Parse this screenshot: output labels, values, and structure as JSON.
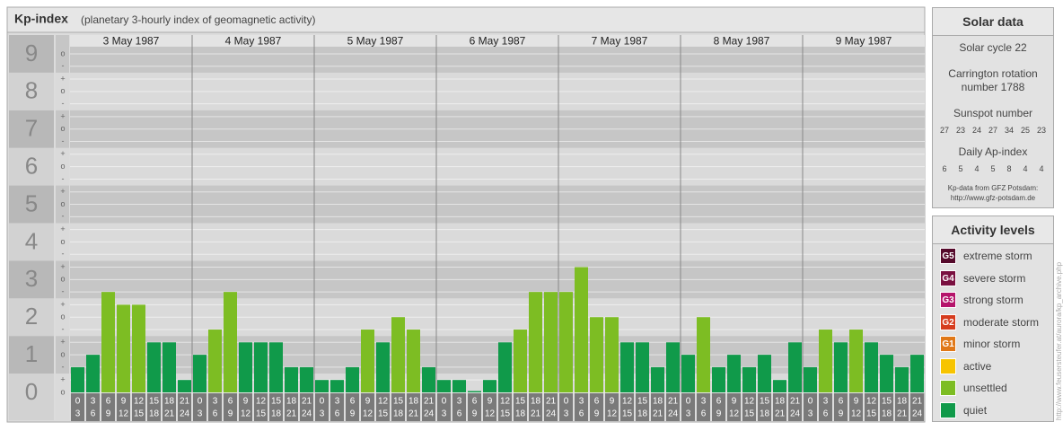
{
  "chart_data": {
    "type": "bar",
    "title": "Kp-index",
    "subtitle": "(planetary 3-hourly index of geomagnetic activity)",
    "hours": [
      "0",
      "3",
      "6",
      "9",
      "12",
      "15",
      "18",
      "21",
      "24"
    ],
    "ylim": [
      0,
      9.5
    ],
    "yticks": [
      0,
      1,
      2,
      3,
      4,
      5,
      6,
      7,
      8,
      9
    ],
    "yticks_minor": [
      {
        "value": 0,
        "label": "o"
      },
      {
        "value": 0.33,
        "label": "+"
      },
      {
        "value": 0.67,
        "label": "-"
      },
      {
        "value": 1,
        "label": "o"
      },
      {
        "value": 1.33,
        "label": "+"
      },
      {
        "value": 1.67,
        "label": "-"
      },
      {
        "value": 2,
        "label": "o"
      },
      {
        "value": 2.33,
        "label": "+"
      },
      {
        "value": 2.67,
        "label": "-"
      },
      {
        "value": 3,
        "label": "o"
      },
      {
        "value": 3.33,
        "label": "+"
      },
      {
        "value": 3.67,
        "label": "-"
      },
      {
        "value": 4,
        "label": "o"
      },
      {
        "value": 4.33,
        "label": "+"
      },
      {
        "value": 4.67,
        "label": "-"
      },
      {
        "value": 5,
        "label": "o"
      },
      {
        "value": 5.33,
        "label": "+"
      },
      {
        "value": 5.67,
        "label": "-"
      },
      {
        "value": 6,
        "label": "o"
      },
      {
        "value": 6.33,
        "label": "+"
      },
      {
        "value": 6.67,
        "label": "-"
      },
      {
        "value": 7,
        "label": "o"
      },
      {
        "value": 7.33,
        "label": "+"
      },
      {
        "value": 7.67,
        "label": "-"
      },
      {
        "value": 8,
        "label": "o"
      },
      {
        "value": 8.33,
        "label": "+"
      },
      {
        "value": 8.67,
        "label": "-"
      },
      {
        "value": 9,
        "label": "o"
      }
    ],
    "grid": true,
    "days": [
      {
        "label": "3 May 1987",
        "values": [
          0.67,
          1,
          2.67,
          2.33,
          2.33,
          1.33,
          1.33,
          0.33
        ],
        "colors": [
          "#109a4a",
          "#109a4a",
          "#7dbd23",
          "#7dbd23",
          "#7dbd23",
          "#109a4a",
          "#109a4a",
          "#109a4a"
        ]
      },
      {
        "label": "4 May 1987",
        "values": [
          1,
          1.67,
          2.67,
          1.33,
          1.33,
          1.33,
          0.67,
          0.67
        ],
        "colors": [
          "#109a4a",
          "#7dbd23",
          "#7dbd23",
          "#109a4a",
          "#109a4a",
          "#109a4a",
          "#109a4a",
          "#109a4a"
        ]
      },
      {
        "label": "5 May 1987",
        "values": [
          0.33,
          0.33,
          0.67,
          1.67,
          1.33,
          2,
          1.67,
          0.67
        ],
        "colors": [
          "#109a4a",
          "#109a4a",
          "#109a4a",
          "#7dbd23",
          "#109a4a",
          "#7dbd23",
          "#7dbd23",
          "#109a4a"
        ]
      },
      {
        "label": "6 May 1987",
        "values": [
          0.33,
          0.33,
          0,
          0.33,
          1.33,
          1.67,
          2.67,
          2.67
        ],
        "colors": [
          "#109a4a",
          "#109a4a",
          "#109a4a",
          "#109a4a",
          "#109a4a",
          "#7dbd23",
          "#7dbd23",
          "#7dbd23"
        ]
      },
      {
        "label": "7 May 1987",
        "values": [
          2.67,
          3.33,
          2,
          2,
          1.33,
          1.33,
          0.67,
          1.33
        ],
        "colors": [
          "#7dbd23",
          "#7dbd23",
          "#7dbd23",
          "#7dbd23",
          "#109a4a",
          "#109a4a",
          "#109a4a",
          "#109a4a"
        ]
      },
      {
        "label": "8 May 1987",
        "values": [
          1,
          2,
          0.67,
          1,
          0.67,
          1,
          0.33,
          1.33
        ],
        "colors": [
          "#109a4a",
          "#7dbd23",
          "#109a4a",
          "#109a4a",
          "#109a4a",
          "#109a4a",
          "#109a4a",
          "#109a4a"
        ]
      },
      {
        "label": "9 May 1987",
        "values": [
          0.67,
          1.67,
          1.33,
          1.67,
          1.33,
          1,
          0.67,
          1
        ],
        "colors": [
          "#109a4a",
          "#7dbd23",
          "#109a4a",
          "#7dbd23",
          "#109a4a",
          "#109a4a",
          "#109a4a",
          "#109a4a"
        ]
      }
    ]
  },
  "solar_data": {
    "title": "Solar data",
    "cycle": "Solar cycle 22",
    "rotation": "Carrington rotation number 1788",
    "sunspot_label": "Sunspot number",
    "sunspot": [
      27,
      23,
      24,
      27,
      34,
      25,
      23
    ],
    "ap_label": "Daily Ap-index",
    "ap": [
      6,
      5,
      4,
      5,
      8,
      4,
      4
    ],
    "source": "Kp-data from GFZ Potsdam:",
    "url": "http://www.gfz-potsdam.de"
  },
  "activity_levels": {
    "title": "Activity levels",
    "items": [
      {
        "code": "G5",
        "label": "extreme storm",
        "color": "#550a2b"
      },
      {
        "code": "G4",
        "label": "severe storm",
        "color": "#7a1040"
      },
      {
        "code": "G3",
        "label": "strong storm",
        "color": "#b5146b"
      },
      {
        "code": "G2",
        "label": "moderate storm",
        "color": "#d63c1e"
      },
      {
        "code": "G1",
        "label": "minor storm",
        "color": "#e07818"
      },
      {
        "label": "active",
        "color": "#f7c400"
      },
      {
        "label": "unsettled",
        "color": "#7dbd23"
      },
      {
        "label": "quiet",
        "color": "#109a4a"
      }
    ]
  },
  "watermark": "http://www.feusersteufer.at/aurora/kp_archive.php"
}
